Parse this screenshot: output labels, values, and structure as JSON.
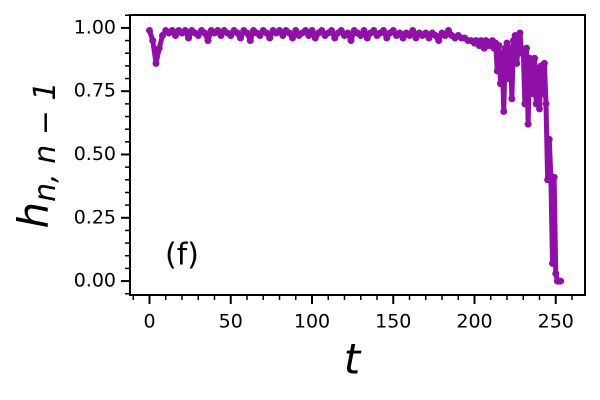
{
  "chart_data": {
    "type": "line",
    "xlabel": "t",
    "ylabel": "h",
    "ylabel_sub": "n, n − 1",
    "annotation": {
      "text": "(f)",
      "x": 20,
      "y": 0.1
    },
    "xlim": [
      -12,
      268
    ],
    "ylim": [
      -0.055,
      1.051
    ],
    "xticks": [
      0,
      50,
      100,
      150,
      200,
      250
    ],
    "yticks": [
      {
        "value": 0,
        "label": "0.00"
      },
      {
        "value": 0.25,
        "label": "0.25"
      },
      {
        "value": 0.5,
        "label": "0.50"
      },
      {
        "value": 0.75,
        "label": "0.75"
      },
      {
        "value": 1,
        "label": "1.00"
      }
    ],
    "xminorticks": [
      -10,
      10,
      20,
      30,
      40,
      60,
      70,
      80,
      90,
      110,
      120,
      130,
      140,
      160,
      170,
      180,
      190,
      210,
      220,
      230,
      240,
      260
    ],
    "yminorticks": [
      -0.05,
      0.05,
      0.1,
      0.15,
      0.2,
      0.3,
      0.35,
      0.4,
      0.45,
      0.55,
      0.6,
      0.65,
      0.7,
      0.8,
      0.85,
      0.9,
      0.95,
      1.05
    ],
    "series": [
      {
        "color": "#8e10a6",
        "x": [
          0,
          2,
          4,
          6,
          8,
          10,
          12,
          14,
          16,
          18,
          20,
          22,
          24,
          26,
          28,
          30,
          32,
          34,
          36,
          38,
          40,
          42,
          44,
          46,
          48,
          50,
          52,
          54,
          56,
          58,
          60,
          62,
          64,
          66,
          68,
          70,
          72,
          74,
          76,
          78,
          80,
          82,
          84,
          86,
          88,
          90,
          92,
          94,
          96,
          98,
          100,
          102,
          104,
          106,
          108,
          110,
          112,
          114,
          116,
          118,
          120,
          122,
          124,
          126,
          128,
          130,
          132,
          134,
          136,
          138,
          140,
          142,
          144,
          146,
          148,
          150,
          152,
          154,
          156,
          158,
          160,
          162,
          164,
          166,
          168,
          170,
          172,
          174,
          176,
          178,
          180,
          182,
          184,
          186,
          188,
          190,
          192,
          194,
          196,
          198,
          200,
          201,
          202,
          203,
          204,
          205,
          206,
          207,
          208,
          209,
          210,
          211,
          212,
          213,
          214,
          215,
          216,
          217,
          218,
          219,
          220,
          221,
          222,
          223,
          224,
          225,
          226,
          227,
          228,
          229,
          230,
          231,
          232,
          233,
          234,
          235,
          236,
          237,
          238,
          239,
          240,
          241,
          242,
          243,
          244,
          245,
          246,
          247,
          248,
          249,
          250,
          251,
          252,
          253
        ],
        "values": [
          0.99,
          0.95,
          0.86,
          0.92,
          0.97,
          0.99,
          0.98,
          0.99,
          0.97,
          0.99,
          0.98,
          0.99,
          0.96,
          0.99,
          0.98,
          0.97,
          0.99,
          0.98,
          0.95,
          0.99,
          0.98,
          0.99,
          0.97,
          0.99,
          0.98,
          0.97,
          0.99,
          0.98,
          0.96,
          0.99,
          0.98,
          0.95,
          0.99,
          0.98,
          0.97,
          0.99,
          0.98,
          0.96,
          0.99,
          0.98,
          0.99,
          0.97,
          0.99,
          0.98,
          0.96,
          0.99,
          0.97,
          0.98,
          0.99,
          0.97,
          0.99,
          0.96,
          0.98,
          0.99,
          0.97,
          0.98,
          0.99,
          0.96,
          0.98,
          0.99,
          0.97,
          0.98,
          0.95,
          0.99,
          0.98,
          0.97,
          0.99,
          0.96,
          0.98,
          0.99,
          0.97,
          0.98,
          0.99,
          0.96,
          0.98,
          0.99,
          0.97,
          0.98,
          0.96,
          0.98,
          0.97,
          0.99,
          0.96,
          0.98,
          0.97,
          0.98,
          0.96,
          0.98,
          0.97,
          0.95,
          0.98,
          0.97,
          0.99,
          0.97,
          0.96,
          0.97,
          0.96,
          0.96,
          0.95,
          0.95,
          0.94,
          0.95,
          0.94,
          0.93,
          0.95,
          0.94,
          0.92,
          0.95,
          0.93,
          0.94,
          0.93,
          0.95,
          0.92,
          0.94,
          0.83,
          0.93,
          0.78,
          0.9,
          0.67,
          0.92,
          0.94,
          0.8,
          0.92,
          0.72,
          0.95,
          0.97,
          0.86,
          0.93,
          0.98,
          0.9,
          0.91,
          0.7,
          0.92,
          0.62,
          0.88,
          0.83,
          0.74,
          0.88,
          0.7,
          0.84,
          0.68,
          0.85,
          0.74,
          0.86,
          0.7,
          0.4,
          0.56,
          0.41,
          0.07,
          0.41,
          0.03,
          0,
          0,
          0
        ]
      }
    ]
  }
}
